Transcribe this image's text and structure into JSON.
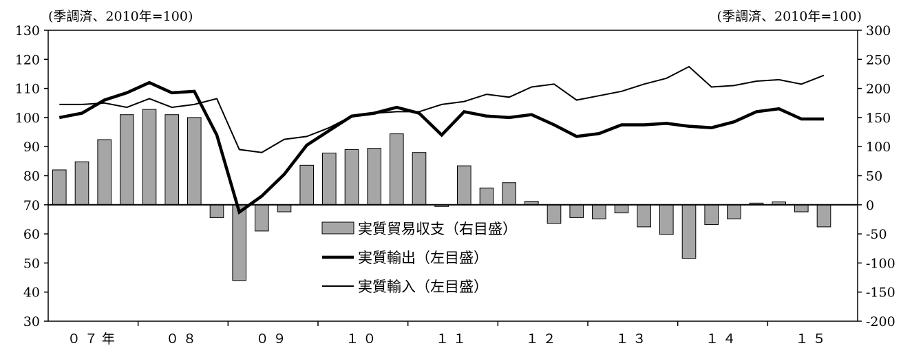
{
  "chart_data": {
    "type": "bar+line",
    "left_unit_label": "(季調済、2010年=100)",
    "right_unit_label": "(季調済、2010年=100)",
    "left_axis": {
      "min": 30,
      "max": 130,
      "ticks": [
        30,
        40,
        50,
        60,
        70,
        80,
        90,
        100,
        110,
        120,
        130
      ]
    },
    "right_axis": {
      "min": -200,
      "max": 300,
      "ticks": [
        -200,
        -150,
        -100,
        -50,
        0,
        50,
        100,
        150,
        200,
        250,
        300
      ]
    },
    "x_year_labels": [
      "０７年",
      "０８",
      "０９",
      "１０",
      "１１",
      "１２",
      "１３",
      "１４",
      "１５"
    ],
    "x_categories": [
      "07Q1",
      "07Q2",
      "07Q3",
      "07Q4",
      "08Q1",
      "08Q2",
      "08Q3",
      "08Q4",
      "09Q1",
      "09Q2",
      "09Q3",
      "09Q4",
      "10Q1",
      "10Q2",
      "10Q3",
      "10Q4",
      "11Q1",
      "11Q2",
      "11Q3",
      "11Q4",
      "12Q1",
      "12Q2",
      "12Q3",
      "12Q4",
      "13Q1",
      "13Q2",
      "13Q3",
      "13Q4",
      "14Q1",
      "14Q2",
      "14Q3",
      "14Q4",
      "15Q1",
      "15Q2",
      "15Q3",
      "15Q4"
    ],
    "series": [
      {
        "name": "実質貿易収支（右目盛）",
        "kind": "bar",
        "axis": "right",
        "color": "#a6a6a6",
        "values": [
          60,
          74,
          112,
          155,
          164,
          155,
          150,
          -22,
          -130,
          -45,
          -12,
          68,
          89,
          95,
          97,
          122,
          90,
          -3,
          67,
          29,
          38,
          6,
          -32,
          -22,
          -24,
          -14,
          -38,
          -51,
          -92,
          -34,
          -24,
          3,
          5,
          -12,
          -38
        ]
      },
      {
        "name": "実質輸出（左目盛）",
        "kind": "line",
        "axis": "left",
        "color": "#000000",
        "line_width": 4.5,
        "values": [
          100,
          101.5,
          106,
          108.5,
          112,
          108.5,
          109,
          94,
          67.5,
          73,
          80.5,
          90.5,
          95.5,
          100.5,
          101.5,
          103.5,
          101.5,
          94,
          102,
          100.5,
          100,
          101,
          97.5,
          93.5,
          94.5,
          97.5,
          97.5,
          98,
          97,
          96.5,
          98.5,
          102,
          103,
          99.5,
          99.5
        ]
      },
      {
        "name": "実質輸入（左目盛）",
        "kind": "line",
        "axis": "left",
        "color": "#000000",
        "line_width": 2,
        "values": [
          104.5,
          104.5,
          105,
          103.5,
          106.5,
          103.5,
          104.5,
          106.5,
          89,
          88,
          92.5,
          93.5,
          96.5,
          100.5,
          101.5,
          102,
          102,
          104.5,
          105.5,
          108,
          107,
          110.5,
          111.5,
          106,
          107.5,
          109,
          111.5,
          113.5,
          117.5,
          110.5,
          111,
          112.5,
          113,
          111.5,
          114.5
        ]
      }
    ],
    "legend_position": "center",
    "grid": false
  }
}
